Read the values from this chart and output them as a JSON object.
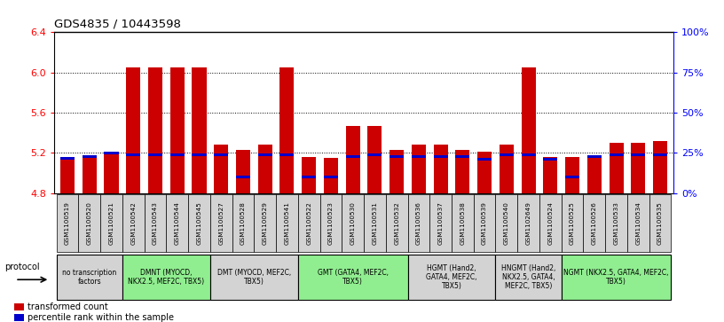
{
  "title": "GDS4835 / 10443598",
  "samples": [
    "GSM1100519",
    "GSM1100520",
    "GSM1100521",
    "GSM1100542",
    "GSM1100543",
    "GSM1100544",
    "GSM1100545",
    "GSM1100527",
    "GSM1100528",
    "GSM1100529",
    "GSM1100541",
    "GSM1100522",
    "GSM1100523",
    "GSM1100530",
    "GSM1100531",
    "GSM1100532",
    "GSM1100536",
    "GSM1100537",
    "GSM1100538",
    "GSM1100539",
    "GSM1100540",
    "GSM1102649",
    "GSM1100524",
    "GSM1100525",
    "GSM1100526",
    "GSM1100533",
    "GSM1100534",
    "GSM1100535"
  ],
  "red_values": [
    5.16,
    5.16,
    5.19,
    6.05,
    6.05,
    6.05,
    6.05,
    5.28,
    5.23,
    5.28,
    6.05,
    5.16,
    5.15,
    5.47,
    5.47,
    5.23,
    5.28,
    5.28,
    5.23,
    5.21,
    5.28,
    6.05,
    5.16,
    5.16,
    5.16,
    5.3,
    5.3,
    5.32
  ],
  "blue_percentiles": [
    21,
    22,
    24,
    23,
    23,
    23,
    23,
    23,
    9,
    23,
    23,
    9,
    9,
    22,
    23,
    22,
    22,
    22,
    22,
    20,
    23,
    23,
    20,
    9,
    22,
    23,
    23,
    23
  ],
  "y_min": 4.8,
  "y_max": 6.4,
  "y_ticks": [
    4.8,
    5.2,
    5.6,
    6.0,
    6.4
  ],
  "y2_ticks": [
    0,
    25,
    50,
    75,
    100
  ],
  "protocols": [
    {
      "label": "no transcription\nfactors",
      "start": 0,
      "end": 3,
      "color": "#d3d3d3"
    },
    {
      "label": "DMNT (MYOCD,\nNKX2.5, MEF2C, TBX5)",
      "start": 3,
      "end": 7,
      "color": "#90ee90"
    },
    {
      "label": "DMT (MYOCD, MEF2C,\nTBX5)",
      "start": 7,
      "end": 11,
      "color": "#d3d3d3"
    },
    {
      "label": "GMT (GATA4, MEF2C,\nTBX5)",
      "start": 11,
      "end": 16,
      "color": "#90ee90"
    },
    {
      "label": "HGMT (Hand2,\nGATA4, MEF2C,\nTBX5)",
      "start": 16,
      "end": 20,
      "color": "#d3d3d3"
    },
    {
      "label": "HNGMT (Hand2,\nNKX2.5, GATA4,\nMEF2C, TBX5)",
      "start": 20,
      "end": 23,
      "color": "#d3d3d3"
    },
    {
      "label": "NGMT (NKX2.5, GATA4, MEF2C,\nTBX5)",
      "start": 23,
      "end": 28,
      "color": "#90ee90"
    }
  ],
  "bar_color_red": "#cc0000",
  "bar_color_blue": "#0000cc",
  "bar_width": 0.65,
  "legend_red": "transformed count",
  "legend_blue": "percentile rank within the sample",
  "bg_color": "#ffffff"
}
